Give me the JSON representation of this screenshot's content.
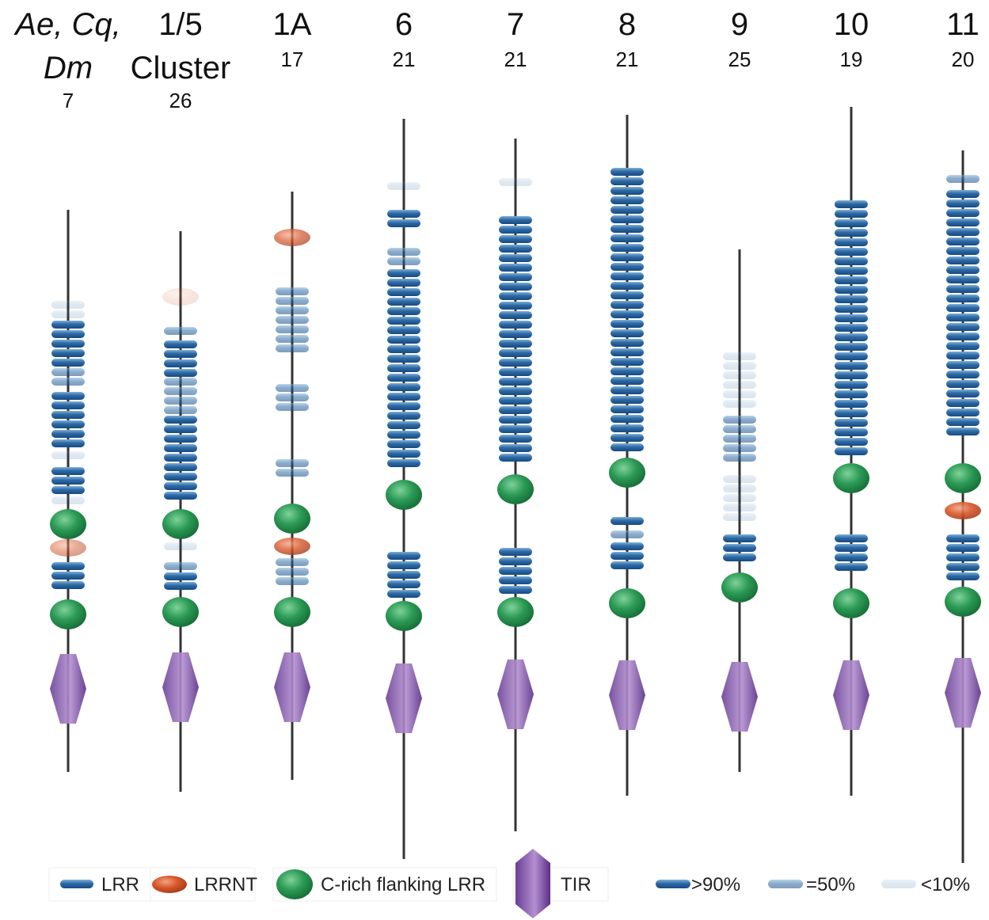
{
  "columns": [
    {
      "label": [
        "Ae, Cq,",
        "Dm"
      ],
      "count": 7
    },
    {
      "label": [
        "1/5",
        "Cluster"
      ],
      "count": 26
    },
    {
      "label": [
        "1A"
      ],
      "count": 17
    },
    {
      "label": [
        "6"
      ],
      "count": 21
    },
    {
      "label": [
        "7"
      ],
      "count": 21
    },
    {
      "label": [
        "8"
      ],
      "count": 21
    },
    {
      "label": [
        "9"
      ],
      "count": 25
    },
    {
      "label": [
        "10"
      ],
      "count": 19
    },
    {
      "label": [
        "11"
      ],
      "count": 20
    }
  ],
  "legend": {
    "domains": [
      "LRR",
      "LRRNT",
      "C-rich flanking LRR",
      "TIR"
    ],
    "conservation": [
      ">90%",
      "=50%",
      "<10%"
    ]
  }
}
